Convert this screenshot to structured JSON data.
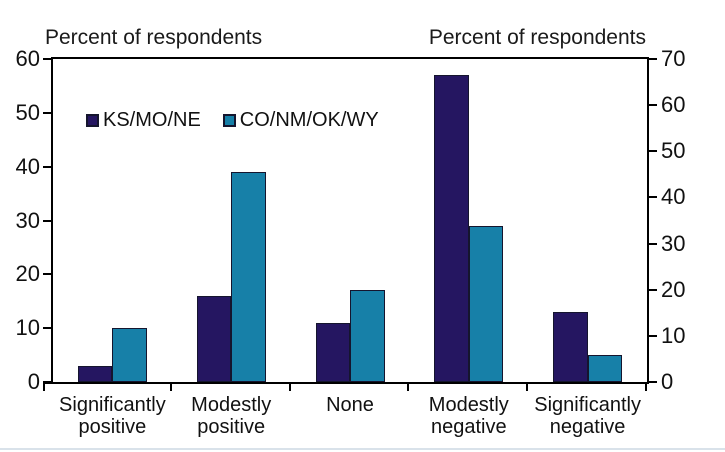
{
  "chart_data": {
    "type": "bar",
    "title": "",
    "categories": [
      "Significantly positive",
      "Modestly positive",
      "None",
      "Modestly negative",
      "Significantly negative"
    ],
    "category_label_lines": [
      [
        "Significantly",
        "positive"
      ],
      [
        "Modestly",
        "positive"
      ],
      [
        "None"
      ],
      [
        "Modestly",
        "negative"
      ],
      [
        "Significantly",
        "negative"
      ]
    ],
    "series": [
      {
        "name": "KS/MO/NE",
        "color": "#251661",
        "values": [
          3,
          16,
          11,
          57,
          13
        ]
      },
      {
        "name": "CO/NM/OK/WY",
        "color": "#1780A8",
        "values": [
          10,
          39,
          17,
          29,
          5
        ]
      }
    ],
    "left_axis": {
      "title": "Percent of respondents",
      "min": 0,
      "max": 60,
      "step": 10,
      "tick_labels": [
        "0",
        "10",
        "20",
        "30",
        "40",
        "50",
        "60"
      ]
    },
    "right_axis": {
      "title": "Percent of respondents",
      "min": 0,
      "max": 70,
      "step": 10,
      "tick_labels": [
        "0",
        "10",
        "20",
        "30",
        "40",
        "50",
        "60",
        "70"
      ]
    },
    "bars_scale": "left_axis",
    "grid": false,
    "legend_position": "inside-top-left",
    "colors": {
      "bar_outline": "#15152e",
      "axis": "#000000",
      "background": "#ffffff",
      "bottom_edge_line": "#d9e2ea"
    }
  }
}
